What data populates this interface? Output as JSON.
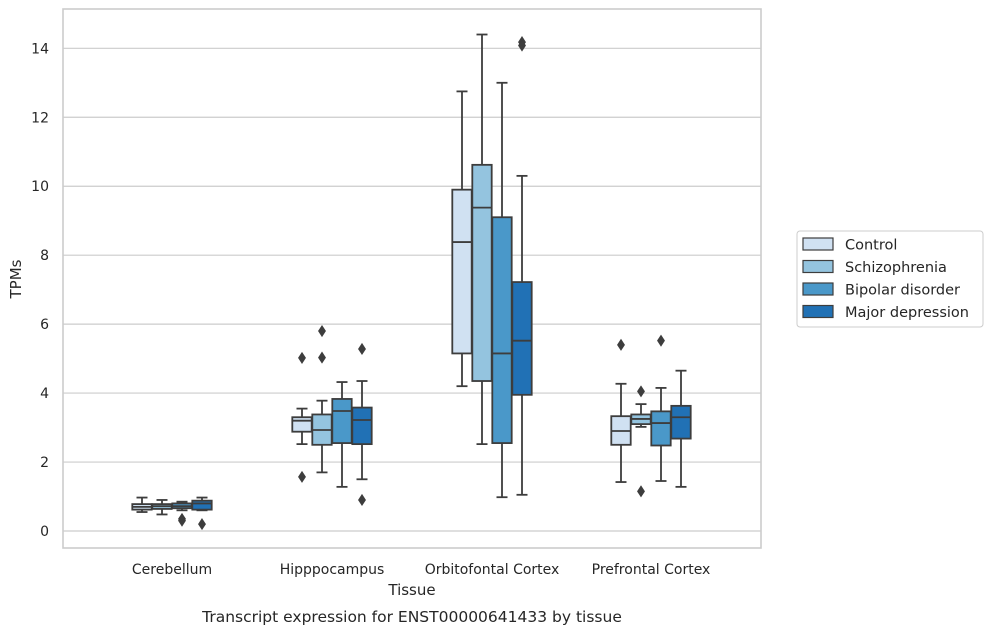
{
  "chart_data": {
    "type": "box",
    "title": "",
    "caption": "Transcript expression for ENST00000641433 by tissue",
    "xlabel": "Tissue",
    "ylabel": "TPMs",
    "ylim": [
      -0.5,
      15.2
    ],
    "yticks": [
      0,
      2,
      4,
      6,
      8,
      10,
      12,
      14
    ],
    "grid": "horizontal",
    "legend_position": "right",
    "categories": [
      "Cerebellum",
      "Hipppocampus",
      "Orbitofontal Cortex",
      "Prefrontal Cortex"
    ],
    "series": [
      {
        "name": "Control",
        "color": "#d0e1f2",
        "boxes": [
          {
            "whislo": 0.55,
            "q1": 0.62,
            "med": 0.7,
            "q3": 0.78,
            "whishi": 0.97,
            "fliers": []
          },
          {
            "whislo": 2.52,
            "q1": 2.88,
            "med": 3.2,
            "q3": 3.3,
            "whishi": 3.55,
            "fliers": [
              5.02,
              1.57
            ]
          },
          {
            "whislo": 4.2,
            "q1": 5.15,
            "med": 8.38,
            "q3": 9.9,
            "whishi": 12.75,
            "fliers": []
          },
          {
            "whislo": 1.42,
            "q1": 2.5,
            "med": 2.9,
            "q3": 3.33,
            "whishi": 4.27,
            "fliers": [
              5.4
            ]
          }
        ]
      },
      {
        "name": "Schizophrenia",
        "color": "#94c4df",
        "boxes": [
          {
            "whislo": 0.48,
            "q1": 0.64,
            "med": 0.72,
            "q3": 0.78,
            "whishi": 0.9,
            "fliers": []
          },
          {
            "whislo": 1.7,
            "q1": 2.5,
            "med": 2.93,
            "q3": 3.38,
            "whishi": 3.78,
            "fliers": [
              5.8,
              5.03
            ]
          },
          {
            "whislo": 2.52,
            "q1": 4.35,
            "med": 9.38,
            "q3": 10.62,
            "whishi": 14.4,
            "fliers": []
          },
          {
            "whislo": 3.02,
            "q1": 3.1,
            "med": 3.25,
            "q3": 3.38,
            "whishi": 3.68,
            "fliers": [
              4.05,
              1.15
            ]
          }
        ]
      },
      {
        "name": "Bipolar disorder",
        "color": "#4a98c9",
        "boxes": [
          {
            "whislo": 0.6,
            "q1": 0.66,
            "med": 0.72,
            "q3": 0.8,
            "whishi": 0.85,
            "fliers": [
              0.35,
              0.3
            ]
          },
          {
            "whislo": 1.28,
            "q1": 2.55,
            "med": 3.48,
            "q3": 3.83,
            "whishi": 4.32,
            "fliers": []
          },
          {
            "whislo": 0.98,
            "q1": 2.55,
            "med": 5.15,
            "q3": 9.1,
            "whishi": 13.0,
            "fliers": []
          },
          {
            "whislo": 1.45,
            "q1": 2.48,
            "med": 3.13,
            "q3": 3.47,
            "whishi": 4.15,
            "fliers": [
              5.52
            ]
          }
        ]
      },
      {
        "name": "Major depression",
        "color": "#2171b5",
        "boxes": [
          {
            "whislo": 0.6,
            "q1": 0.62,
            "med": 0.8,
            "q3": 0.88,
            "whishi": 0.97,
            "fliers": [
              0.2
            ]
          },
          {
            "whislo": 1.5,
            "q1": 2.52,
            "med": 3.22,
            "q3": 3.58,
            "whishi": 4.35,
            "fliers": [
              5.28,
              0.9
            ]
          },
          {
            "whislo": 1.05,
            "q1": 3.95,
            "med": 5.52,
            "q3": 7.22,
            "whishi": 10.3,
            "fliers": [
              14.18,
              14.08
            ]
          },
          {
            "whislo": 1.28,
            "q1": 2.68,
            "med": 3.3,
            "q3": 3.63,
            "whishi": 4.65,
            "fliers": []
          }
        ]
      }
    ]
  }
}
